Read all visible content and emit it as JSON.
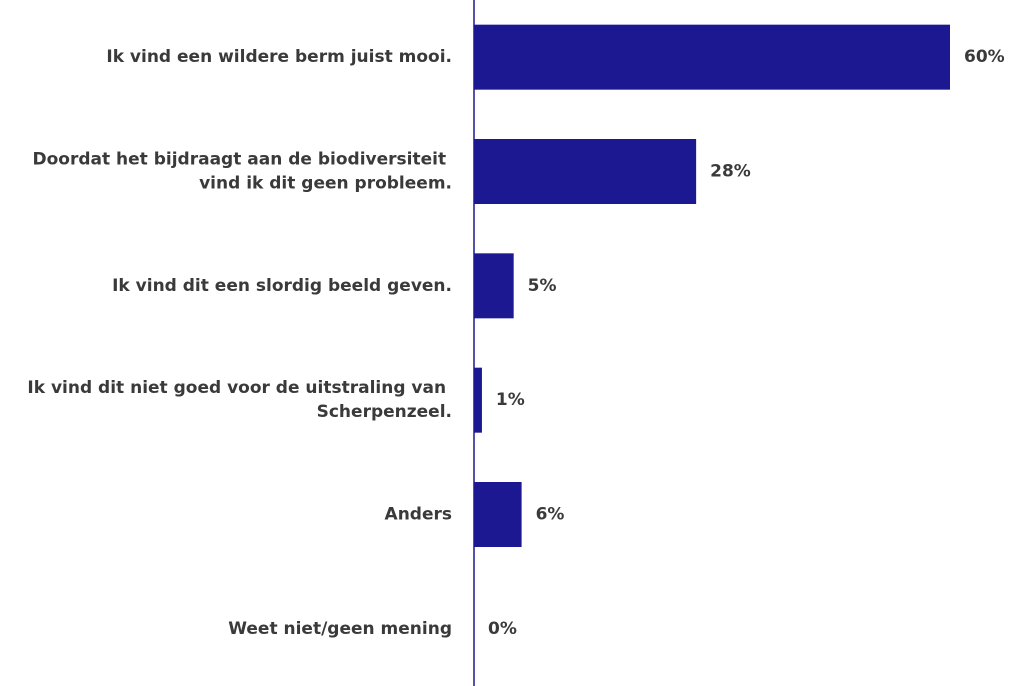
{
  "chart_data": {
    "type": "bar",
    "orientation": "horizontal",
    "categories": [
      "Ik vind een wildere berm juist mooi.",
      "Doordat het bijdraagt aan de biodiversiteit vind ik dit geen probleem.",
      "Ik vind dit een slordig beeld geven.",
      "Ik vind dit niet goed voor de uitstraling van Scherpenzeel.",
      "Anders",
      "Weet niet/geen mening"
    ],
    "values": [
      60,
      28,
      5,
      1,
      6,
      0
    ],
    "value_labels": [
      "60%",
      "28%",
      "5%",
      "1%",
      "6%",
      "0%"
    ],
    "color": "#1c1891"
  }
}
